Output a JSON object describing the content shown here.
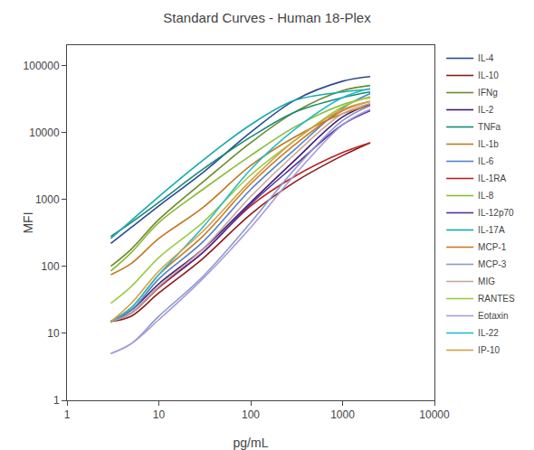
{
  "chart_data": {
    "type": "line",
    "title": "Standard Curves - Human 18-Plex",
    "xlabel": "pg/mL",
    "ylabel": "MFI",
    "log": true,
    "xlim": [
      1,
      10000
    ],
    "ylim": [
      1,
      200000
    ],
    "xticks": [
      1,
      10,
      100,
      1000,
      10000
    ],
    "yticks": [
      1,
      10,
      100,
      1000,
      10000,
      100000
    ],
    "grid": false,
    "legend": "right",
    "x": [
      3,
      5,
      10,
      30,
      100,
      300,
      1000,
      2000
    ],
    "series": [
      {
        "name": "IL-4",
        "color": "#2B4B8E",
        "values": [
          220,
          380,
          800,
          2500,
          10000,
          30000,
          58000,
          68000
        ]
      },
      {
        "name": "IL-10",
        "color": "#8B1A1A",
        "values": [
          15,
          18,
          40,
          130,
          600,
          1800,
          4500,
          7000
        ]
      },
      {
        "name": "IFNg",
        "color": "#6B8A2A",
        "values": [
          100,
          180,
          500,
          1800,
          7000,
          20000,
          42000,
          50000
        ]
      },
      {
        "name": "IL-2",
        "color": "#3D1A78",
        "values": [
          15,
          22,
          55,
          180,
          900,
          3800,
          17000,
          26000
        ]
      },
      {
        "name": "TNFa",
        "color": "#1A8878",
        "values": [
          280,
          450,
          900,
          2800,
          8500,
          20000,
          33000,
          40000
        ]
      },
      {
        "name": "IL-1b",
        "color": "#C07820",
        "values": [
          75,
          110,
          260,
          750,
          3200,
          8500,
          19000,
          25000
        ]
      },
      {
        "name": "IL-6",
        "color": "#5080CC",
        "values": [
          15,
          22,
          65,
          230,
          1400,
          5500,
          23000,
          38000
        ]
      },
      {
        "name": "IL-1RA",
        "color": "#BB2222",
        "values": [
          15,
          20,
          48,
          160,
          800,
          2200,
          5000,
          7000
        ]
      },
      {
        "name": "IL-8",
        "color": "#88BB35",
        "values": [
          85,
          160,
          450,
          1400,
          4500,
          12000,
          26000,
          33000
        ]
      },
      {
        "name": "IL-12p70",
        "color": "#5530A0",
        "values": [
          15,
          20,
          50,
          160,
          850,
          3200,
          13000,
          21000
        ]
      },
      {
        "name": "IL-17A",
        "color": "#15AAAA",
        "values": [
          260,
          480,
          1100,
          3800,
          13000,
          30000,
          40000,
          44000
        ]
      },
      {
        "name": "MCP-1",
        "color": "#CC7A22",
        "values": [
          15,
          24,
          75,
          280,
          1700,
          6500,
          21000,
          29000
        ]
      },
      {
        "name": "MCP-3",
        "color": "#8899CC",
        "values": [
          5,
          7,
          18,
          70,
          450,
          2800,
          15000,
          25000
        ]
      },
      {
        "name": "MIG",
        "color": "#C8A898",
        "values": [
          15,
          20,
          50,
          180,
          1100,
          4700,
          19000,
          27000
        ]
      },
      {
        "name": "RANTES",
        "color": "#99CC44",
        "values": [
          28,
          50,
          135,
          450,
          2300,
          7500,
          24000,
          34000
        ]
      },
      {
        "name": "Eotaxin",
        "color": "#AA99DD",
        "values": [
          5,
          7,
          16,
          65,
          380,
          2300,
          13000,
          22000
        ]
      },
      {
        "name": "IL-22",
        "color": "#22BBCC",
        "values": [
          15,
          24,
          75,
          380,
          2800,
          11000,
          33000,
          45000
        ]
      },
      {
        "name": "IP-10",
        "color": "#D4A040",
        "values": [
          15,
          28,
          85,
          330,
          1900,
          7500,
          22000,
          29000
        ]
      }
    ]
  }
}
